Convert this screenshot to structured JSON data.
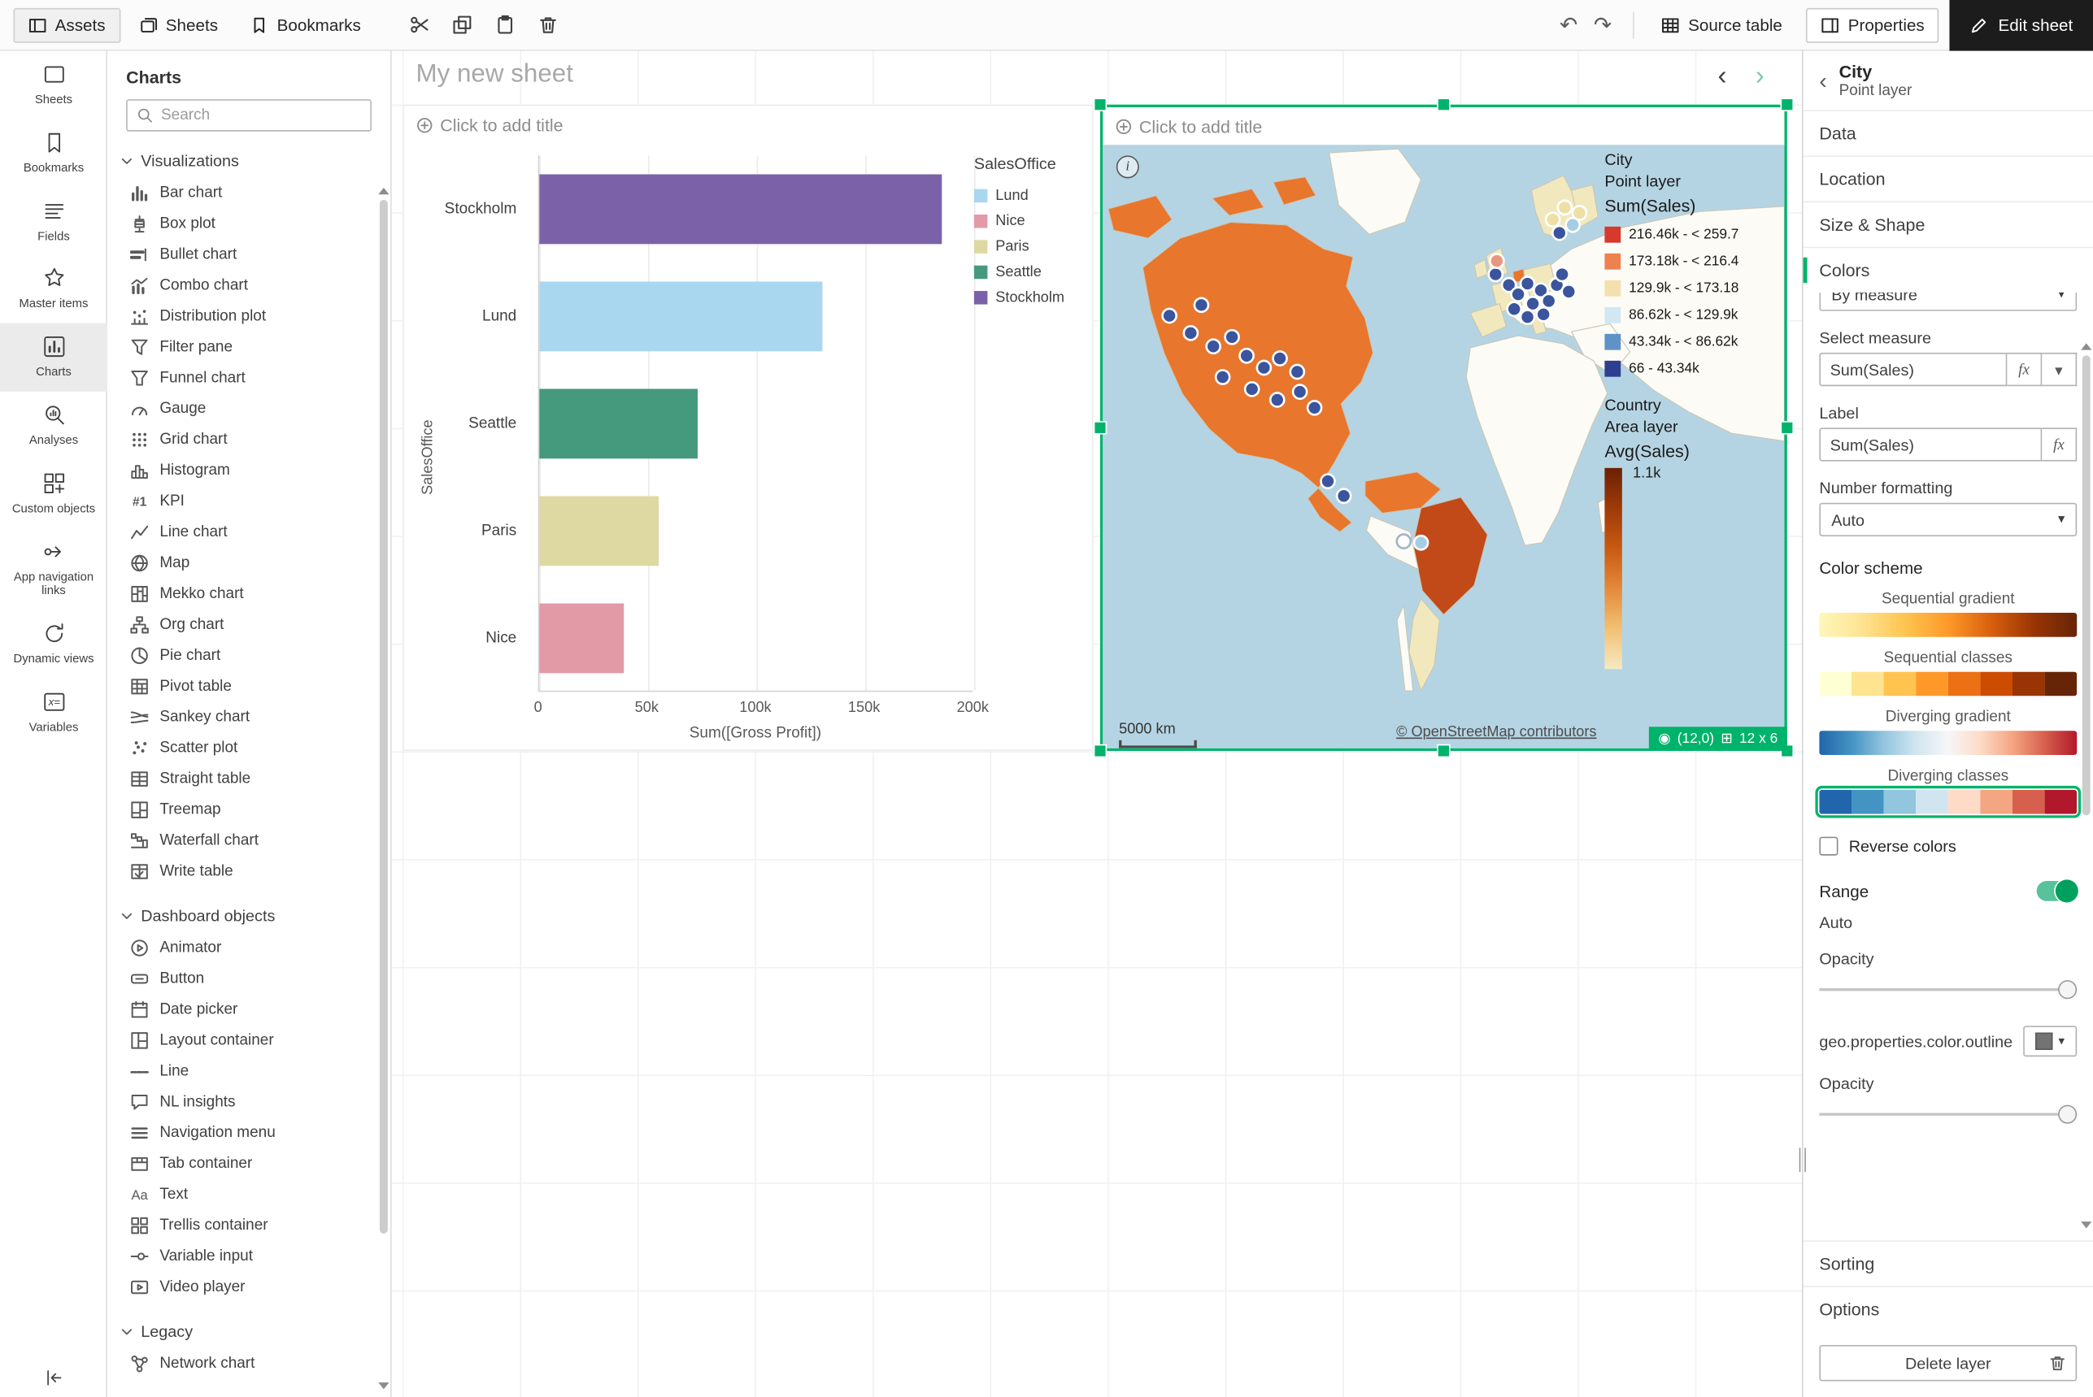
{
  "topbar": {
    "tabs": [
      {
        "label": "Assets",
        "active": true
      },
      {
        "label": "Sheets",
        "active": false
      },
      {
        "label": "Bookmarks",
        "active": false
      }
    ],
    "source_table_label": "Source table",
    "properties_label": "Properties",
    "edit_sheet_label": "Edit sheet"
  },
  "icons": {
    "undo": "↶",
    "redo": "↷",
    "back": "‹",
    "prev_sheet": "‹",
    "next_sheet": "›",
    "dropdown": "▾",
    "position_badge": "◉",
    "grid_badge": "⊞",
    "info": "i",
    "fx": "fx"
  },
  "left_rail": {
    "active_item": "Charts",
    "items": [
      "Sheets",
      "Bookmarks",
      "Fields",
      "Master items",
      "Charts",
      "Analyses",
      "Custom objects",
      "App navigation links",
      "Dynamic views",
      "Variables"
    ]
  },
  "assets_panel": {
    "title": "Charts",
    "search_placeholder": "Search",
    "sections": [
      {
        "label": "Visualizations",
        "items": [
          "Bar chart",
          "Box plot",
          "Bullet chart",
          "Combo chart",
          "Distribution plot",
          "Filter pane",
          "Funnel chart",
          "Gauge",
          "Grid chart",
          "Histogram",
          "KPI",
          "Line chart",
          "Map",
          "Mekko chart",
          "Org chart",
          "Pie chart",
          "Pivot table",
          "Sankey chart",
          "Scatter plot",
          "Straight table",
          "Treemap",
          "Waterfall chart",
          "Write table"
        ]
      },
      {
        "label": "Dashboard objects",
        "items": [
          "Animator",
          "Button",
          "Date picker",
          "Layout container",
          "Line",
          "NL insights",
          "Navigation menu",
          "Tab container",
          "Text",
          "Trellis container",
          "Variable input",
          "Video player"
        ]
      },
      {
        "label": "Legacy",
        "items": [
          "Network chart"
        ]
      }
    ]
  },
  "sheet": {
    "title": "My new sheet"
  },
  "bar_object": {
    "title_placeholder": "Click to add title"
  },
  "map_object": {
    "title_placeholder": "Click to add title",
    "scale_label": "5000 km",
    "attribution": "© OpenStreetMap contributors",
    "badge": {
      "position": "(12,0)",
      "size": "12 x 6"
    },
    "point_legend": {
      "layer_title": "City",
      "layer_subtitle": "Point layer",
      "measure": "Sum(Sales)",
      "classes": [
        {
          "label": "216.46k - < 259.7",
          "color": "#d7392c"
        },
        {
          "label": "173.18k - < 216.4",
          "color": "#ee8150"
        },
        {
          "label": "129.9k - < 173.18",
          "color": "#f3e0ac"
        },
        {
          "label": "86.62k - < 129.9k",
          "color": "#d3e7f2"
        },
        {
          "label": "43.34k - < 86.62k",
          "color": "#5f93c7"
        },
        {
          "label": "66 - 43.34k",
          "color": "#2e3f90"
        }
      ]
    },
    "area_legend": {
      "layer_title": "Country",
      "layer_subtitle": "Area layer",
      "measure": "Avg(Sales)",
      "top_label": "1.1k"
    }
  },
  "chart_data": [
    {
      "type": "bar",
      "orientation": "horizontal",
      "title": "",
      "categories": [
        "Stockholm",
        "Lund",
        "Seattle",
        "Paris",
        "Nice"
      ],
      "values": [
        185000,
        130000,
        73000,
        55000,
        39000
      ],
      "colors": [
        "#7b62a8",
        "#a9d7ef",
        "#45997c",
        "#ded9a2",
        "#e29aa6"
      ],
      "xlabel": "Sum([Gross Profit])",
      "ylabel": "SalesOffice",
      "x_ticks": [
        "0",
        "50k",
        "100k",
        "150k",
        "200k"
      ],
      "x_tick_values": [
        0,
        50000,
        100000,
        150000,
        200000
      ],
      "xlim": [
        0,
        200000
      ],
      "grid": true,
      "legend_position": "top-right",
      "legend": {
        "title": "SalesOffice",
        "entries": [
          {
            "label": "Lund",
            "color": "#a9d7ef"
          },
          {
            "label": "Nice",
            "color": "#e29aa6"
          },
          {
            "label": "Paris",
            "color": "#ded9a2"
          },
          {
            "label": "Seattle",
            "color": "#45997c"
          },
          {
            "label": "Stockholm",
            "color": "#7b62a8"
          }
        ]
      }
    },
    {
      "type": "map",
      "layers": [
        {
          "name": "City",
          "kind": "point",
          "measure": "Sum(Sales)",
          "classes": [
            "216.46k - < 259.7",
            "173.18k - < 216.4",
            "129.9k - < 173.18",
            "86.62k - < 129.9k",
            "43.34k - < 86.62k",
            "66 - 43.34k"
          ]
        },
        {
          "name": "Country",
          "kind": "area",
          "measure": "Avg(Sales)",
          "scale_top_label": "1.1k"
        }
      ],
      "attribution": "© OpenStreetMap contributors",
      "scale": "5000 km"
    }
  ],
  "properties_panel": {
    "title": "City",
    "subtitle": "Point layer",
    "sections": [
      "Data",
      "Location",
      "Size & Shape",
      "Colors"
    ],
    "expanded_section": "Colors",
    "colors": {
      "mode_value": "By measure",
      "select_measure_label": "Select measure",
      "select_measure_value": "Sum(Sales)",
      "label_label": "Label",
      "label_value": "Sum(Sales)",
      "number_formatting_label": "Number formatting",
      "number_formatting_value": "Auto",
      "color_scheme_label": "Color scheme",
      "schemes": [
        {
          "label": "Sequential gradient",
          "kind": "gradient",
          "selected": false,
          "colors": [
            "#fff7bc",
            "#fee391",
            "#fec44f",
            "#fe9929",
            "#d95f0e",
            "#993404",
            "#662506"
          ]
        },
        {
          "label": "Sequential classes",
          "kind": "classes",
          "selected": false,
          "colors": [
            "#ffffd4",
            "#fee391",
            "#fec44f",
            "#fe9929",
            "#ec7014",
            "#cc4c02",
            "#993404",
            "#662506"
          ]
        },
        {
          "label": "Diverging gradient",
          "kind": "gradient",
          "selected": false,
          "colors": [
            "#2166ac",
            "#4393c3",
            "#92c5de",
            "#d1e5f0",
            "#f7f7f7",
            "#fddbc7",
            "#f4a582",
            "#d6604d",
            "#b2182b"
          ]
        },
        {
          "label": "Diverging classes",
          "kind": "classes",
          "selected": true,
          "colors": [
            "#2166ac",
            "#4393c3",
            "#92c5de",
            "#d1e5f0",
            "#fddbc7",
            "#f4a582",
            "#d6604d",
            "#b2182b"
          ]
        }
      ],
      "reverse_colors_label": "Reverse colors",
      "range_label": "Range",
      "range_value": "Auto",
      "range_on": true,
      "opacity_label": "Opacity",
      "outline_label": "geo.properties.color.outline",
      "opacity2_label": "Opacity"
    },
    "bottom_sections": [
      "Sorting",
      "Options"
    ],
    "delete_layer_label": "Delete layer"
  },
  "accent_colors": {
    "selection_green": "#00b36b",
    "ocean": "#b5d4e3",
    "country_orange": "#e8762c",
    "country_dark": "#c14a18",
    "country_cream": "#f2e8bd",
    "point_navy": "#3a549e"
  }
}
